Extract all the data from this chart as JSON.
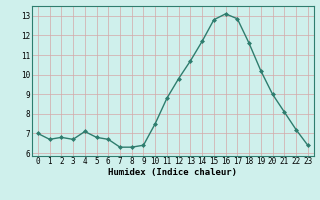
{
  "x": [
    0,
    1,
    2,
    3,
    4,
    5,
    6,
    7,
    8,
    9,
    10,
    11,
    12,
    13,
    14,
    15,
    16,
    17,
    18,
    19,
    20,
    21,
    22,
    23
  ],
  "y": [
    7.0,
    6.7,
    6.8,
    6.7,
    7.1,
    6.8,
    6.7,
    6.3,
    6.3,
    6.4,
    7.5,
    8.8,
    9.8,
    10.7,
    11.7,
    12.8,
    13.1,
    12.85,
    11.6,
    10.2,
    9.0,
    8.1,
    7.2,
    6.4
  ],
  "line_color": "#2e7d6e",
  "marker": "D",
  "marker_size": 2.0,
  "bg_color": "#cff0ec",
  "grid_color": "#d4a8a8",
  "xlabel": "Humidex (Indice chaleur)",
  "xlim": [
    -0.5,
    23.5
  ],
  "ylim": [
    5.85,
    13.5
  ],
  "yticks": [
    6,
    7,
    8,
    9,
    10,
    11,
    12,
    13
  ],
  "xticks": [
    0,
    1,
    2,
    3,
    4,
    5,
    6,
    7,
    8,
    9,
    10,
    11,
    12,
    13,
    14,
    15,
    16,
    17,
    18,
    19,
    20,
    21,
    22,
    23
  ],
  "tick_fontsize": 5.5,
  "xlabel_fontsize": 6.5,
  "spine_color": "#2e7d6e",
  "line_width": 1.0
}
